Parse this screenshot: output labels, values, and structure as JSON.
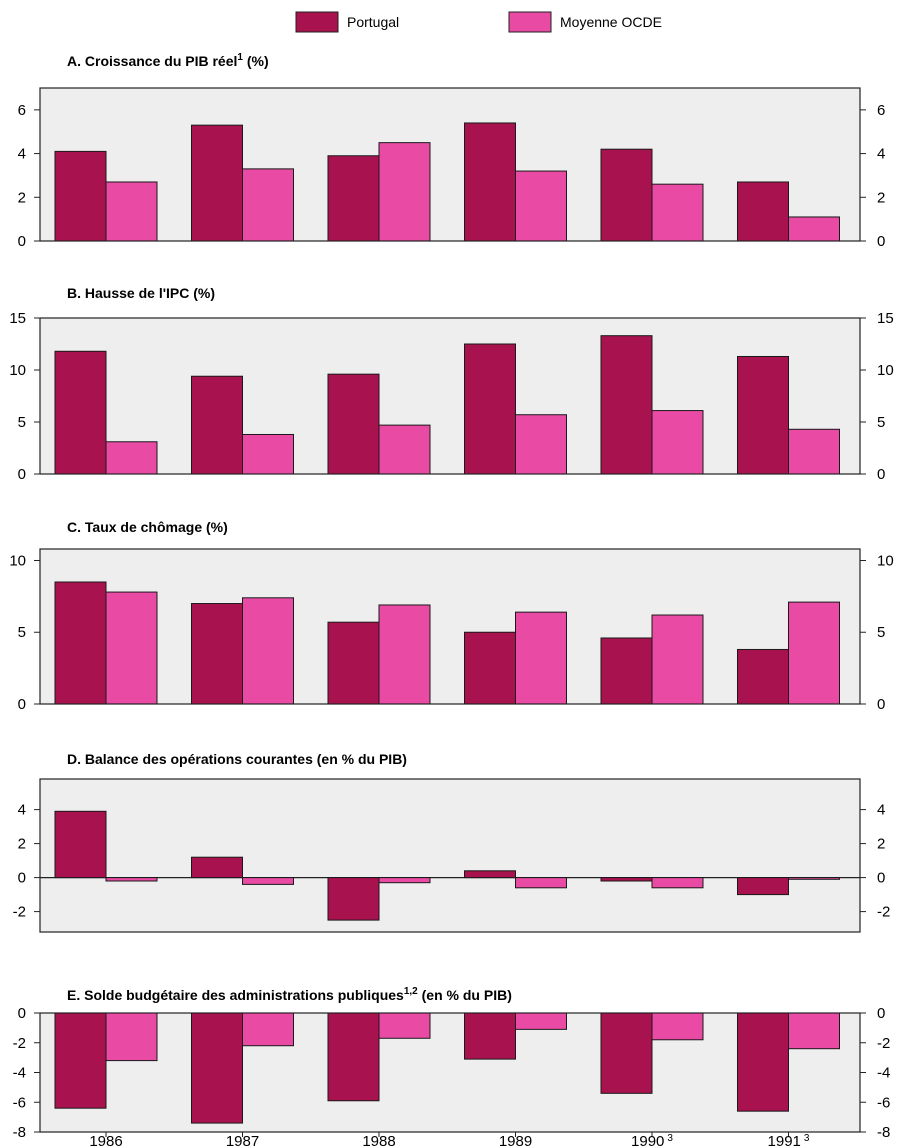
{
  "legend": [
    {
      "name": "Portugal",
      "color": "#a8124e"
    },
    {
      "name": "Moyenne OCDE",
      "color": "#e84aa4"
    }
  ],
  "colors": {
    "panel_bg": "#eeeeee",
    "axis": "#222222"
  },
  "x_footnotes": [
    "",
    "",
    "",
    "",
    "3",
    "3"
  ],
  "chart_data": [
    {
      "type": "bar",
      "title": "A.  Croissance du PIB réel",
      "title_sup": "1",
      "title_suffix": " (%)",
      "categories": [
        "1986",
        "1987",
        "1988",
        "1989",
        "1990",
        "1991"
      ],
      "series": [
        {
          "name": "Portugal",
          "values": [
            4.1,
            5.3,
            3.9,
            5.4,
            4.2,
            2.7
          ]
        },
        {
          "name": "Moyenne OCDE",
          "values": [
            2.7,
            3.3,
            4.5,
            3.2,
            2.6,
            1.1
          ]
        }
      ],
      "ylim": [
        0,
        7
      ],
      "yticks": [
        0,
        2,
        4,
        6
      ],
      "grid": false,
      "legend_position": "top"
    },
    {
      "type": "bar",
      "title": "B.  Hausse de l'IPC (%)",
      "title_sup": "",
      "title_suffix": "",
      "categories": [
        "1986",
        "1987",
        "1988",
        "1989",
        "1990",
        "1991"
      ],
      "series": [
        {
          "name": "Portugal",
          "values": [
            11.8,
            9.4,
            9.6,
            12.5,
            13.3,
            11.3
          ]
        },
        {
          "name": "Moyenne OCDE",
          "values": [
            3.1,
            3.8,
            4.7,
            5.7,
            6.1,
            4.3
          ]
        }
      ],
      "ylim": [
        0,
        15
      ],
      "yticks": [
        0,
        5,
        10,
        15
      ],
      "grid": false
    },
    {
      "type": "bar",
      "title": "C.  Taux de chômage (%)",
      "title_sup": "",
      "title_suffix": "",
      "categories": [
        "1986",
        "1987",
        "1988",
        "1989",
        "1990",
        "1991"
      ],
      "series": [
        {
          "name": "Portugal",
          "values": [
            8.5,
            7.0,
            5.7,
            5.0,
            4.6,
            3.8
          ]
        },
        {
          "name": "Moyenne OCDE",
          "values": [
            7.8,
            7.4,
            6.9,
            6.4,
            6.2,
            7.1
          ]
        }
      ],
      "ylim": [
        0,
        10.8
      ],
      "yticks": [
        0,
        5,
        10
      ],
      "grid": false
    },
    {
      "type": "bar",
      "title": "D.  Balance des opérations courantes (en % du PIB)",
      "title_sup": "",
      "title_suffix": "",
      "categories": [
        "1986",
        "1987",
        "1988",
        "1989",
        "1990",
        "1991"
      ],
      "series": [
        {
          "name": "Portugal",
          "values": [
            3.9,
            1.2,
            -2.5,
            0.4,
            -0.2,
            -1.0
          ]
        },
        {
          "name": "Moyenne OCDE",
          "values": [
            -0.2,
            -0.4,
            -0.3,
            -0.6,
            -0.6,
            -0.1
          ]
        }
      ],
      "ylim": [
        -3.2,
        5.8
      ],
      "yticks": [
        -2,
        0,
        2,
        4
      ],
      "grid": false
    },
    {
      "type": "bar",
      "title": "E.  Solde budgétaire des administrations publiques",
      "title_sup": "1,2",
      "title_suffix": "  (en % du PIB)",
      "categories": [
        "1986",
        "1987",
        "1988",
        "1989",
        "1990",
        "1991"
      ],
      "series": [
        {
          "name": "Portugal",
          "values": [
            -6.4,
            -7.4,
            -5.9,
            -3.1,
            -5.4,
            -6.6
          ]
        },
        {
          "name": "Moyenne OCDE",
          "values": [
            -3.2,
            -2.2,
            -1.7,
            -1.1,
            -1.8,
            -2.4
          ]
        }
      ],
      "ylim": [
        -8,
        0
      ],
      "yticks": [
        -8,
        -6,
        -4,
        -2,
        0
      ],
      "grid": false
    }
  ]
}
